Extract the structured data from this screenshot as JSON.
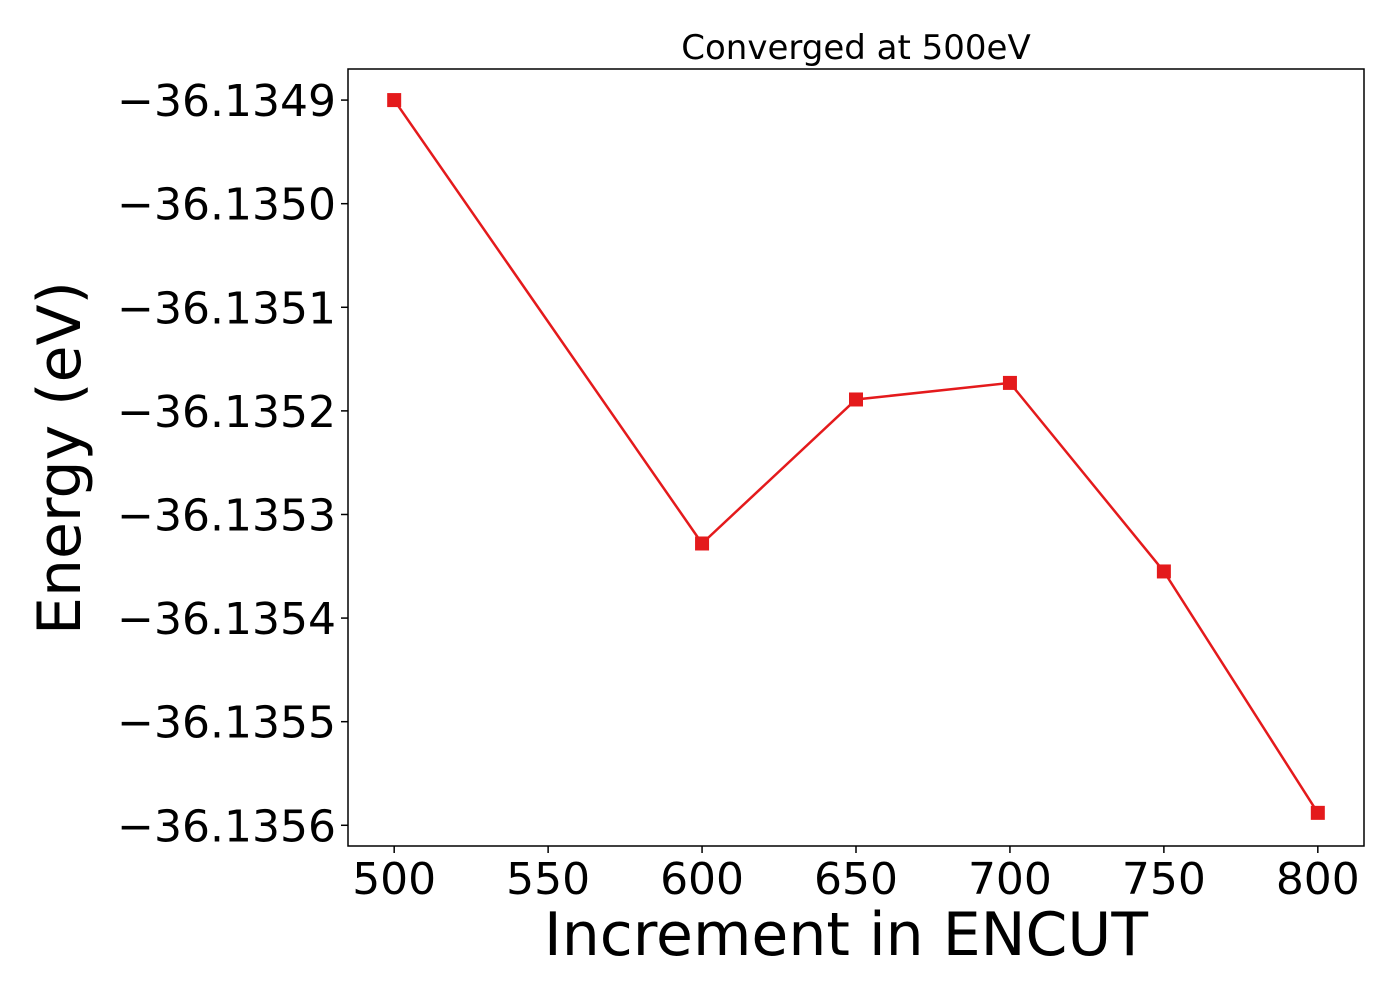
{
  "chart_data": {
    "type": "line",
    "title": "Converged at 500eV",
    "xlabel": "Increment in ENCUT",
    "ylabel": "Energy (eV)",
    "x": [
      500,
      600,
      650,
      700,
      750,
      800
    ],
    "series": [
      {
        "values": [
          -36.1349,
          -36.135328,
          -36.135189,
          -36.135173,
          -36.135355,
          -36.135588
        ],
        "color": "#e41a1c",
        "marker": "square"
      }
    ],
    "xlim": [
      485,
      815
    ],
    "ylim": [
      -36.13562,
      -36.13487
    ],
    "xticks": [
      500,
      550,
      600,
      650,
      700,
      750,
      800
    ],
    "xtick_labels": [
      "500",
      "550",
      "600",
      "650",
      "700",
      "750",
      "800"
    ],
    "yticks": [
      -36.1349,
      -36.135,
      -36.1351,
      -36.1352,
      -36.1353,
      -36.1354,
      -36.1355,
      -36.1356
    ],
    "ytick_labels": [
      "−36.1349",
      "−36.1350",
      "−36.1351",
      "−36.1352",
      "−36.1353",
      "−36.1354",
      "−36.1355",
      "−36.1356"
    ],
    "grid": false,
    "legend": false
  }
}
